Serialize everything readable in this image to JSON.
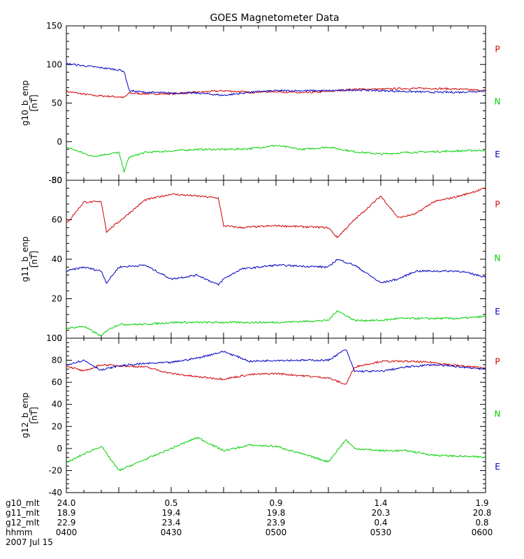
{
  "title": "GOES Magnetometer Data",
  "colors": {
    "P": "#d00000",
    "N": "#00d000",
    "E": "#0000c0",
    "axis": "#000000"
  },
  "legend": [
    "P",
    "N",
    "E"
  ],
  "chart_data": [
    {
      "type": "line",
      "ylabel": "g10_b_enp",
      "units": "[nT]",
      "ylim": [
        -50,
        150
      ],
      "yticks": [
        -50,
        0,
        50,
        100,
        150
      ],
      "x_minutes": [
        0,
        15,
        30,
        33,
        36,
        45,
        60,
        75,
        90,
        105,
        120,
        135,
        150,
        165,
        180,
        195,
        210,
        225,
        240
      ],
      "series": [
        {
          "name": "P",
          "values": [
            65,
            60,
            58,
            57,
            63,
            62,
            62,
            64,
            66,
            64,
            65,
            63,
            65,
            68,
            68,
            69,
            69,
            68,
            66
          ]
        },
        {
          "name": "N",
          "values": [
            -7,
            -19,
            -14,
            -38,
            -20,
            -14,
            -12,
            -10,
            -10,
            -9,
            -5,
            -10,
            -7,
            -13,
            -16,
            -14,
            -13,
            -12,
            -11
          ]
        },
        {
          "name": "E",
          "values": [
            101,
            97,
            93,
            91,
            66,
            64,
            63,
            63,
            60,
            64,
            66,
            66,
            66,
            67,
            66,
            65,
            64,
            64,
            66
          ]
        }
      ]
    },
    {
      "type": "line",
      "ylabel": "g11_b_enp",
      "units": "[nT]",
      "ylim": [
        0,
        80
      ],
      "yticks": [
        0,
        20,
        40,
        60,
        80
      ],
      "x_minutes": [
        0,
        10,
        20,
        23,
        30,
        45,
        60,
        75,
        87,
        90,
        100,
        120,
        150,
        155,
        165,
        180,
        190,
        200,
        210,
        225,
        240
      ],
      "series": [
        {
          "name": "P",
          "values": [
            58,
            69,
            69,
            54,
            59,
            70,
            73,
            72,
            71,
            57,
            56,
            57,
            56,
            51,
            60,
            72,
            61,
            63,
            69,
            72,
            76
          ]
        },
        {
          "name": "N",
          "values": [
            5,
            6,
            1,
            4,
            7,
            7,
            8,
            8,
            8,
            8,
            8,
            8,
            9,
            14,
            9,
            9,
            10,
            10,
            10,
            10,
            11
          ]
        },
        {
          "name": "E",
          "values": [
            34,
            36,
            34,
            28,
            36,
            37,
            30,
            32,
            27,
            30,
            35,
            37,
            36,
            40,
            37,
            28,
            30,
            34,
            34,
            34,
            31
          ]
        }
      ]
    },
    {
      "type": "line",
      "ylabel": "g12_b_enp",
      "units": "[nT]",
      "ylim": [
        -40,
        100
      ],
      "yticks": [
        -40,
        -20,
        0,
        20,
        40,
        60,
        80,
        100
      ],
      "x_minutes": [
        0,
        10,
        20,
        30,
        45,
        60,
        75,
        90,
        105,
        120,
        150,
        160,
        165,
        180,
        195,
        210,
        225,
        240
      ],
      "series": [
        {
          "name": "P",
          "values": [
            75,
            70,
            76,
            75,
            74,
            68,
            65,
            63,
            67,
            68,
            64,
            58,
            74,
            79,
            79,
            78,
            75,
            73
          ]
        },
        {
          "name": "N",
          "values": [
            -13,
            -5,
            2,
            -20,
            -10,
            0,
            10,
            -2,
            3,
            2,
            -12,
            8,
            0,
            -2,
            -2,
            -6,
            -7,
            -8
          ]
        },
        {
          "name": "E",
          "values": [
            76,
            80,
            71,
            75,
            77,
            78,
            82,
            88,
            79,
            80,
            80,
            90,
            70,
            70,
            74,
            76,
            74,
            72
          ]
        }
      ]
    }
  ],
  "x_axis": {
    "rows": [
      {
        "label": "g10_mlt",
        "values": [
          "24.0",
          "0.5",
          "0.9",
          "1.4",
          "1.9"
        ]
      },
      {
        "label": "g11_mlt",
        "values": [
          "18.9",
          "19.4",
          "19.8",
          "20.3",
          "20.8"
        ]
      },
      {
        "label": "g12_mlt",
        "values": [
          "22.9",
          "23.4",
          "23.9",
          "0.4",
          "0.8"
        ]
      },
      {
        "label": "hhmm",
        "values": [
          "0400",
          "0430",
          "0500",
          "0530",
          "0600"
        ]
      }
    ],
    "date": "2007 Jul 15"
  }
}
